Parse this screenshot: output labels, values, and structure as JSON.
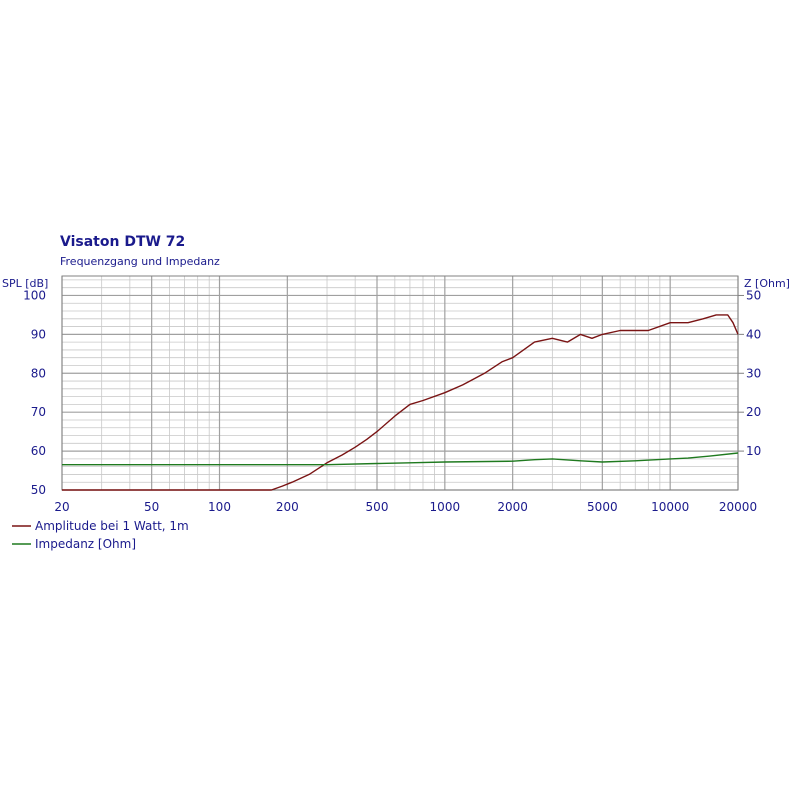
{
  "chart_data": {
    "type": "line",
    "title": "Visaton DTW 72",
    "subtitle": "Frequenzgang und Impedanz",
    "ylabel_left": "SPL [dB]",
    "ylabel_right": "Z [Ohm]",
    "x_scale": "log",
    "xlim": [
      20,
      20000
    ],
    "ylim_left": [
      50,
      105
    ],
    "ylim_right": [
      0,
      55
    ],
    "grid": true,
    "legend_position": "bottom-left",
    "x_ticks": [
      "20",
      "50",
      "100",
      "200",
      "500",
      "1000",
      "2000",
      "5000",
      "10000",
      "20000"
    ],
    "y_ticks_left": [
      "50",
      "60",
      "70",
      "80",
      "90",
      "100"
    ],
    "y_ticks_right": [
      "10",
      "20",
      "30",
      "40",
      "50"
    ],
    "colors": {
      "title": "#1a1a8c",
      "tick_text": "#1a1a8c",
      "grid": "#c8c8c8",
      "major_grid": "#a0a0a0",
      "amplitude": "#7a1414",
      "impedance": "#1f7a1f"
    },
    "series": [
      {
        "name": "Amplitude bei 1 Watt, 1m",
        "axis": "left",
        "color": "#7a1414",
        "x": [
          20,
          100,
          170,
          190,
          210,
          250,
          300,
          350,
          400,
          450,
          500,
          600,
          700,
          800,
          1000,
          1200,
          1500,
          1800,
          2000,
          2500,
          3000,
          3500,
          4000,
          4500,
          5000,
          6000,
          7000,
          8000,
          10000,
          12000,
          14000,
          16000,
          18000,
          19000,
          20000
        ],
        "values": [
          50,
          50,
          50,
          51,
          52,
          54,
          57,
          59,
          61,
          63,
          65,
          69,
          72,
          73,
          75,
          77,
          80,
          83,
          84,
          88,
          89,
          88,
          90,
          89,
          90,
          91,
          91,
          91,
          93,
          93,
          94,
          95,
          95,
          93,
          90
        ]
      },
      {
        "name": "Impedanz [Ohm]",
        "axis": "right",
        "color": "#1f7a1f",
        "x": [
          20,
          100,
          200,
          300,
          500,
          700,
          1000,
          2000,
          2500,
          3000,
          4000,
          5000,
          7000,
          10000,
          12000,
          15000,
          20000
        ],
        "values": [
          6.5,
          6.5,
          6.5,
          6.5,
          6.8,
          7,
          7.2,
          7.4,
          7.8,
          8,
          7.5,
          7.2,
          7.5,
          8,
          8.2,
          8.7,
          9.5
        ]
      }
    ]
  }
}
